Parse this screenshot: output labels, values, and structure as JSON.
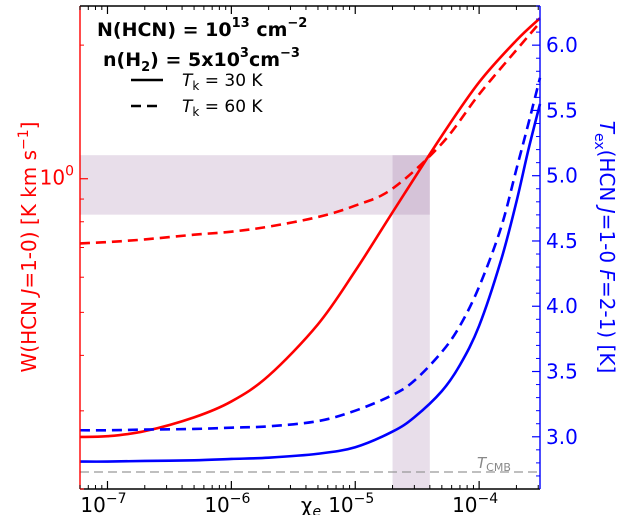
{
  "chart_data": {
    "type": "line",
    "title_lines": [
      [
        "N(HCN) = 10",
        "13",
        " cm",
        "−2"
      ],
      [
        "n(H",
        "2",
        ") = 5x10",
        "3",
        "cm",
        "−3"
      ]
    ],
    "xlabel": "χ",
    "xlabel_sub": "e",
    "ylabel_left": "W(HCN J=1-0) [K km s⁻¹]",
    "ylabel_right": "Tex(HCN J=1-0 F=2-1) [K]",
    "x_scale": "log",
    "xlim": [
      6e-08,
      0.00031
    ],
    "y_left_scale": "log",
    "y_left_lim": [
      0.2,
      2.45
    ],
    "y_right_scale": "linear",
    "y_right_lim": [
      2.6,
      6.3
    ],
    "x_ticks": [
      {
        "value": 1e-07,
        "label": "10⁻⁷"
      },
      {
        "value": 1e-06,
        "label": "10⁻⁶"
      },
      {
        "value": 1e-05,
        "label": "10⁻⁵"
      },
      {
        "value": 0.0001,
        "label": "10⁻⁴"
      }
    ],
    "y_left_ticks": [
      {
        "value": 1.0,
        "label": "10⁰"
      }
    ],
    "y_right_ticks": [
      "3.0",
      "3.5",
      "4.0",
      "4.5",
      "5.0",
      "5.5",
      "6.0"
    ],
    "legend": {
      "placement": "top-left",
      "entries": [
        {
          "style": "solid",
          "label": "Tk = 30 K"
        },
        {
          "style": "dashed",
          "label": "Tk = 60 K"
        }
      ]
    },
    "tcmb": {
      "value": 2.73,
      "label": "TCMB"
    },
    "shaded_regions": [
      {
        "axis": "y_left",
        "range": [
          0.83,
          1.13
        ],
        "color": "#7e4a88"
      },
      {
        "axis": "x",
        "range": [
          2e-05,
          4e-05
        ],
        "color": "#7e4a88"
      }
    ],
    "series": [
      {
        "axis": "left",
        "style": "solid",
        "color": "#ff0000",
        "x": [
          6e-08,
          1e-07,
          2e-07,
          5e-07,
          1e-06,
          2e-06,
          5e-06,
          1e-05,
          2e-05,
          5e-05,
          0.0001,
          0.0002,
          0.00031
        ],
        "y": [
          0.262,
          0.263,
          0.27,
          0.29,
          0.315,
          0.36,
          0.47,
          0.62,
          0.84,
          1.25,
          1.65,
          2.05,
          2.3
        ]
      },
      {
        "axis": "left",
        "style": "dashed",
        "color": "#ff0000",
        "x": [
          6e-08,
          1e-07,
          2e-07,
          5e-07,
          1e-06,
          2e-06,
          5e-06,
          1e-05,
          2e-05,
          5e-05,
          0.0001,
          0.0002,
          0.00031
        ],
        "y": [
          0.715,
          0.72,
          0.73,
          0.748,
          0.76,
          0.78,
          0.82,
          0.87,
          0.95,
          1.2,
          1.55,
          1.95,
          2.25
        ]
      },
      {
        "axis": "right",
        "style": "solid",
        "color": "#0000ff",
        "x": [
          6e-08,
          1e-07,
          2e-07,
          5e-07,
          1e-06,
          2e-06,
          5e-06,
          1e-05,
          2e-05,
          3e-05,
          5e-05,
          7e-05,
          0.0001,
          0.00015,
          0.0002,
          0.00025,
          0.00031
        ],
        "y": [
          2.81,
          2.81,
          2.815,
          2.82,
          2.83,
          2.84,
          2.87,
          2.92,
          3.04,
          3.15,
          3.35,
          3.55,
          3.85,
          4.35,
          4.8,
          5.2,
          5.55
        ]
      },
      {
        "axis": "right",
        "style": "dashed",
        "color": "#0000ff",
        "x": [
          6e-08,
          1e-07,
          2e-07,
          5e-07,
          1e-06,
          2e-06,
          5e-06,
          1e-05,
          2e-05,
          3e-05,
          5e-05,
          7e-05,
          0.0001,
          0.00015,
          0.0002,
          0.00025,
          0.00031
        ],
        "y": [
          3.05,
          3.05,
          3.055,
          3.06,
          3.07,
          3.08,
          3.12,
          3.2,
          3.32,
          3.43,
          3.65,
          3.85,
          4.15,
          4.6,
          5.05,
          5.4,
          5.75
        ]
      }
    ]
  }
}
